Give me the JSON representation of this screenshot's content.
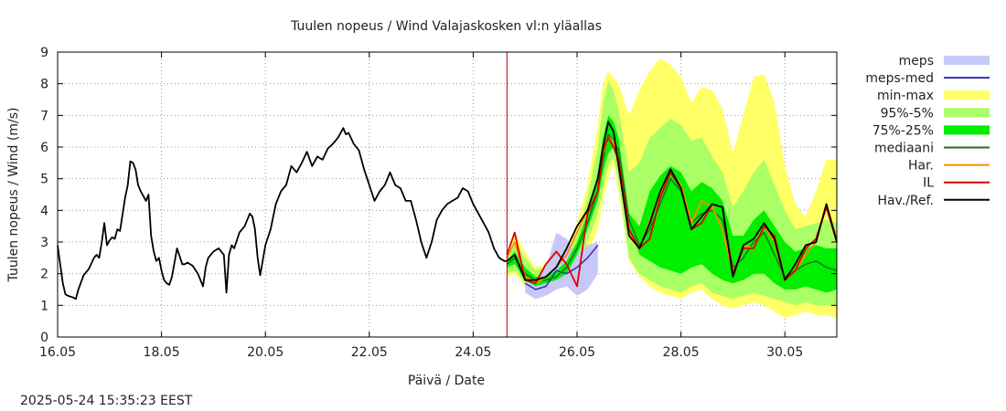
{
  "chart_data": {
    "type": "line",
    "title": "Tuulen nopeus / Wind  Valajaskosken vl:n yläallas",
    "xlabel": "Päivä / Date",
    "ylabel": "Tuulen nopeus / Wind (m/s)",
    "timestamp": "2025-05-24 15:35:23 EEST",
    "xlim": [
      16.0,
      31.0
    ],
    "ylim": [
      0,
      9
    ],
    "x_ticks": [
      {
        "x": 16,
        "label": "16.05"
      },
      {
        "x": 18,
        "label": "18.05"
      },
      {
        "x": 20,
        "label": "20.05"
      },
      {
        "x": 22,
        "label": "22.05"
      },
      {
        "x": 24,
        "label": "24.05"
      },
      {
        "x": 26,
        "label": "26.05"
      },
      {
        "x": 28,
        "label": "28.05"
      },
      {
        "x": 30,
        "label": "30.05"
      }
    ],
    "y_ticks": [
      "0",
      "1",
      "2",
      "3",
      "4",
      "5",
      "6",
      "7",
      "8",
      "9"
    ],
    "now_x": 24.65,
    "colors": {
      "meps": "#c8c8f8",
      "meps_med": "#3030b0",
      "min_max": "#ffff66",
      "p95_5": "#aaff66",
      "p75_25": "#00ee00",
      "median": "#207020",
      "har": "#ff8c00",
      "il": "#dd0000",
      "obs": "#000000",
      "now_line": "#aa0000"
    },
    "legend": [
      {
        "key": "meps",
        "label": "meps",
        "kind": "band"
      },
      {
        "key": "meps_med",
        "label": "meps-med",
        "kind": "line"
      },
      {
        "key": "min_max",
        "label": "min-max",
        "kind": "band"
      },
      {
        "key": "p95_5",
        "label": "95%-5%",
        "kind": "band"
      },
      {
        "key": "p75_25",
        "label": "75%-25%",
        "kind": "band"
      },
      {
        "key": "median",
        "label": "mediaani",
        "kind": "line"
      },
      {
        "key": "har",
        "label": "Har.",
        "kind": "line"
      },
      {
        "key": "il",
        "label": "IL",
        "kind": "line"
      },
      {
        "key": "obs",
        "label": "Hav./Ref.",
        "kind": "line"
      }
    ],
    "series": {
      "observed": {
        "x": [
          16.0,
          16.05,
          16.1,
          16.15,
          16.2,
          16.3,
          16.35,
          16.4,
          16.5,
          16.55,
          16.6,
          16.7,
          16.75,
          16.8,
          16.85,
          16.9,
          16.95,
          17.0,
          17.05,
          17.1,
          17.15,
          17.2,
          17.3,
          17.35,
          17.4,
          17.45,
          17.5,
          17.55,
          17.6,
          17.7,
          17.75,
          17.8,
          17.85,
          17.9,
          17.95,
          18.0,
          18.05,
          18.1,
          18.15,
          18.2,
          18.3,
          18.4,
          18.45,
          18.5,
          18.6,
          18.7,
          18.8,
          18.85,
          18.9,
          19.0,
          19.1,
          19.2,
          19.25,
          19.3,
          19.35,
          19.4,
          19.5,
          19.6,
          19.7,
          19.75,
          19.8,
          19.85,
          19.9,
          20.0,
          20.1,
          20.2,
          20.3,
          20.4,
          20.5,
          20.6,
          20.7,
          20.8,
          20.9,
          21.0,
          21.1,
          21.2,
          21.3,
          21.4,
          21.5,
          21.55,
          21.6,
          21.7,
          21.8,
          21.9,
          22.0,
          22.1,
          22.2,
          22.3,
          22.4,
          22.5,
          22.6,
          22.7,
          22.8,
          22.9,
          23.0,
          23.1,
          23.2,
          23.3,
          23.4,
          23.5,
          23.6,
          23.7,
          23.8,
          23.9,
          24.0,
          24.1,
          24.2,
          24.3,
          24.4,
          24.5,
          24.6,
          24.65
        ],
        "y": [
          2.9,
          2.3,
          1.7,
          1.35,
          1.3,
          1.25,
          1.2,
          1.5,
          1.95,
          2.05,
          2.15,
          2.5,
          2.6,
          2.5,
          3.0,
          3.6,
          2.9,
          3.05,
          3.15,
          3.1,
          3.4,
          3.35,
          4.4,
          4.8,
          5.55,
          5.5,
          5.3,
          4.8,
          4.6,
          4.3,
          4.5,
          3.2,
          2.7,
          2.4,
          2.5,
          2.1,
          1.8,
          1.7,
          1.65,
          1.9,
          2.8,
          2.3,
          2.3,
          2.35,
          2.25,
          2.0,
          1.6,
          2.2,
          2.5,
          2.7,
          2.8,
          2.6,
          1.4,
          2.6,
          2.9,
          2.8,
          3.3,
          3.5,
          3.9,
          3.8,
          3.4,
          2.5,
          1.95,
          2.9,
          3.4,
          4.2,
          4.6,
          4.8,
          5.4,
          5.2,
          5.5,
          5.85,
          5.4,
          5.7,
          5.6,
          5.95,
          6.1,
          6.3,
          6.6,
          6.4,
          6.45,
          6.1,
          5.9,
          5.3,
          4.8,
          4.3,
          4.6,
          4.8,
          5.2,
          4.8,
          4.7,
          4.3,
          4.3,
          3.7,
          3.0,
          2.5,
          3.0,
          3.7,
          4.0,
          4.2,
          4.3,
          4.4,
          4.7,
          4.6,
          4.2,
          3.9,
          3.6,
          3.3,
          2.8,
          2.5,
          2.4,
          2.4
        ]
      },
      "forecast_x": [
        24.65,
        24.8,
        25.0,
        25.2,
        25.4,
        25.6,
        25.8,
        26.0,
        26.2,
        26.4,
        26.5,
        26.6,
        26.7,
        26.8,
        27.0,
        27.2,
        27.4,
        27.6,
        27.8,
        28.0,
        28.2,
        28.4,
        28.6,
        28.8,
        29.0,
        29.2,
        29.4,
        29.6,
        29.8,
        30.0,
        30.2,
        30.4,
        30.6,
        30.8,
        31.0
      ],
      "min_max_low": [
        1.9,
        2.0,
        1.6,
        1.4,
        1.5,
        1.5,
        1.6,
        1.7,
        2.6,
        3.4,
        4.3,
        5.0,
        5.5,
        4.6,
        2.4,
        1.9,
        1.6,
        1.4,
        1.3,
        1.2,
        1.4,
        1.5,
        1.2,
        1.0,
        0.9,
        1.0,
        1.1,
        1.0,
        0.8,
        0.6,
        0.7,
        0.8,
        0.7,
        0.7,
        0.6
      ],
      "min_max_high": [
        2.6,
        3.3,
        2.7,
        2.2,
        2.3,
        2.5,
        2.7,
        3.6,
        4.8,
        6.7,
        8.0,
        8.4,
        8.2,
        8.0,
        7.0,
        7.8,
        8.4,
        8.8,
        8.6,
        8.2,
        7.4,
        7.9,
        7.8,
        7.2,
        5.8,
        7.0,
        8.2,
        8.3,
        7.4,
        5.4,
        4.2,
        3.8,
        4.6,
        5.6,
        5.6
      ],
      "p95_5_low": [
        2.0,
        2.1,
        1.7,
        1.5,
        1.6,
        1.6,
        1.8,
        2.1,
        3.0,
        3.9,
        4.7,
        5.4,
        5.7,
        4.9,
        2.5,
        2.0,
        1.8,
        1.6,
        1.5,
        1.4,
        1.6,
        1.7,
        1.4,
        1.3,
        1.2,
        1.3,
        1.4,
        1.3,
        1.2,
        1.1,
        1.0,
        1.1,
        1.0,
        1.0,
        1.0
      ],
      "p95_5_high": [
        2.5,
        3.0,
        2.5,
        2.1,
        2.2,
        2.3,
        2.6,
        3.2,
        4.4,
        6.0,
        7.4,
        8.1,
        7.8,
        7.2,
        5.2,
        5.5,
        6.3,
        6.6,
        6.9,
        6.7,
        6.2,
        6.3,
        5.7,
        5.2,
        4.1,
        4.6,
        5.2,
        5.6,
        4.8,
        4.0,
        3.4,
        3.5,
        3.6,
        3.7,
        3.6
      ],
      "p75_25_low": [
        2.2,
        2.3,
        1.8,
        1.6,
        1.7,
        1.8,
        2.0,
        2.6,
        3.4,
        4.3,
        5.2,
        5.8,
        6.0,
        5.4,
        3.5,
        2.6,
        2.4,
        2.2,
        2.1,
        2.0,
        2.2,
        2.3,
        2.0,
        1.8,
        1.7,
        1.8,
        2.0,
        2.0,
        1.7,
        1.5,
        1.5,
        1.6,
        1.5,
        1.4,
        1.5
      ],
      "p75_25_high": [
        2.4,
        2.7,
        2.2,
        1.9,
        1.9,
        2.1,
        2.4,
        3.0,
        3.9,
        5.2,
        6.3,
        7.0,
        6.8,
        6.3,
        3.9,
        3.5,
        4.6,
        5.1,
        5.4,
        5.2,
        4.6,
        4.9,
        4.7,
        4.3,
        3.2,
        3.2,
        3.7,
        4.0,
        3.5,
        3.0,
        2.7,
        2.8,
        2.9,
        2.8,
        2.8
      ],
      "median": [
        2.3,
        2.5,
        2.0,
        1.8,
        1.8,
        1.9,
        2.2,
        2.8,
        3.6,
        4.6,
        5.6,
        6.4,
        6.2,
        5.9,
        3.7,
        2.9,
        3.4,
        4.2,
        5.0,
        4.6,
        3.6,
        3.9,
        4.0,
        3.7,
        2.2,
        2.5,
        3.0,
        3.3,
        2.6,
        1.9,
        2.1,
        2.3,
        2.4,
        2.2,
        2.1
      ],
      "har": [
        2.5,
        3.0,
        1.9,
        1.7,
        1.9,
        2.2,
        2.6,
        3.3,
        4.0,
        5.0,
        5.8,
        6.3,
        6.2,
        5.4,
        3.3,
        2.8,
        3.7,
        4.5,
        5.2,
        4.8,
        3.6,
        4.3,
        4.1,
        3.4,
        2.0,
        2.9,
        2.8,
        3.5,
        3.0,
        1.8,
        2.1,
        2.6,
        3.0,
        4.2,
        3.1
      ],
      "il": [
        2.6,
        3.3,
        1.8,
        1.7,
        2.3,
        2.7,
        2.3,
        1.6,
        3.9,
        4.6,
        5.9,
        6.3,
        6.0,
        5.6,
        3.4,
        2.8,
        3.1,
        4.4,
        5.2,
        4.7,
        3.4,
        3.6,
        4.2,
        4.1,
        2.0,
        2.8,
        2.8,
        3.5,
        3.2,
        1.8,
        2.1,
        2.8,
        3.1,
        4.1,
        3.0
      ],
      "hav_ref": [
        2.4,
        2.6,
        1.8,
        1.8,
        1.9,
        2.2,
        2.8,
        3.5,
        4.0,
        5.0,
        6.0,
        6.8,
        6.5,
        5.4,
        3.2,
        2.8,
        3.6,
        4.6,
        5.3,
        4.7,
        3.4,
        3.8,
        4.2,
        4.1,
        1.9,
        2.9,
        3.1,
        3.6,
        3.1,
        1.8,
        2.3,
        2.9,
        3.0,
        4.2,
        3.0
      ],
      "meps": {
        "x": [
          25.0,
          25.2,
          25.4,
          25.6,
          25.8,
          26.0,
          26.2,
          26.4
        ],
        "low": [
          1.4,
          1.2,
          1.3,
          1.5,
          1.6,
          1.3,
          1.5,
          2.0
        ],
        "high": [
          2.0,
          1.8,
          2.2,
          3.3,
          3.1,
          2.6,
          2.9,
          3.0
        ]
      },
      "meps_med": {
        "x": [
          25.0,
          25.2,
          25.4,
          25.6,
          25.8,
          26.0,
          26.2,
          26.4
        ],
        "y": [
          1.7,
          1.5,
          1.6,
          2.1,
          2.0,
          2.2,
          2.5,
          2.9
        ]
      }
    }
  }
}
